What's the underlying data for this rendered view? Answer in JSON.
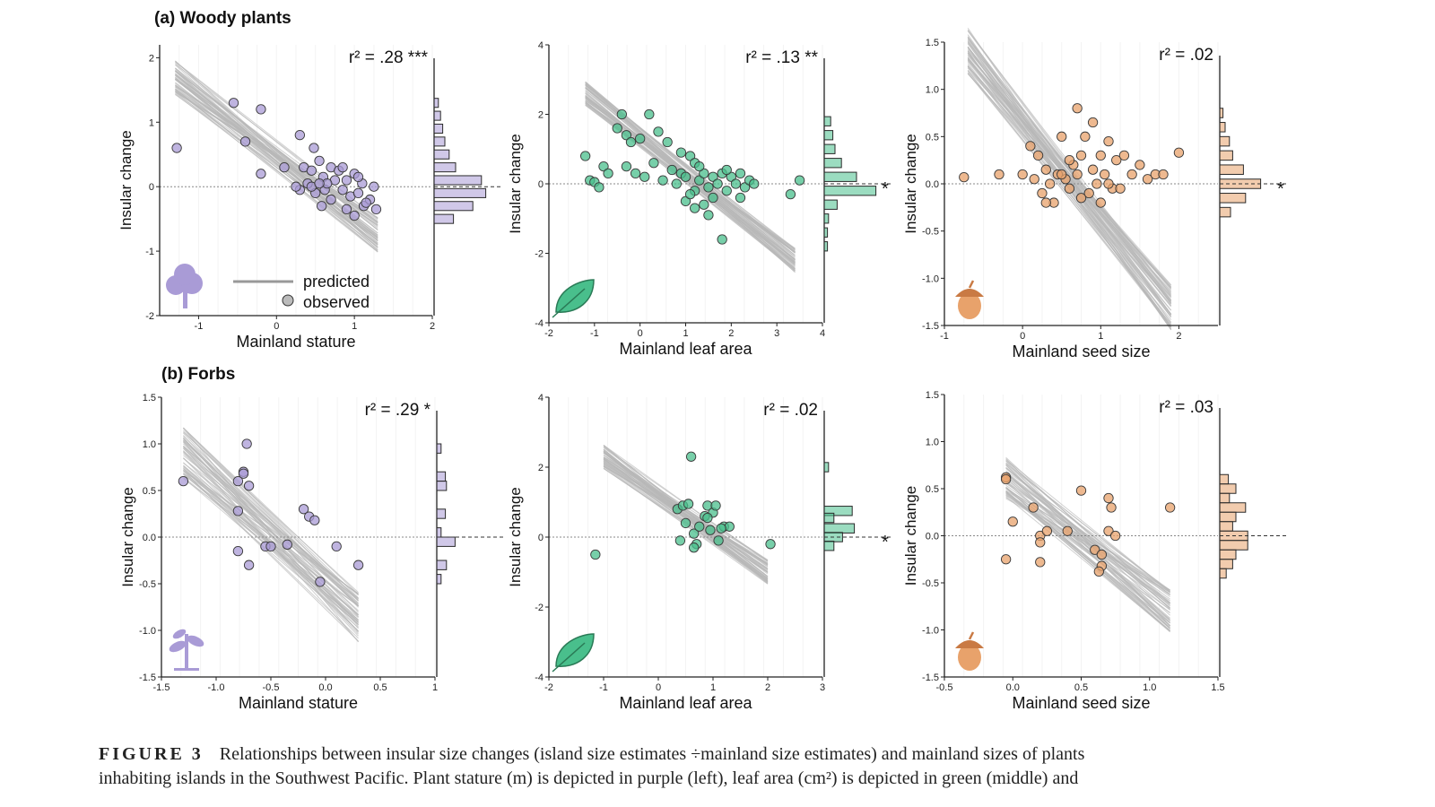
{
  "sections": [
    {
      "letter": "(a)",
      "title": "Woody plants"
    },
    {
      "letter": "(b)",
      "title": "Forbs"
    }
  ],
  "legend": {
    "line_label": "predicted",
    "point_label": "observed"
  },
  "colors": {
    "purple": "#8c7fc0",
    "purple_fill": "#a99bd6",
    "green": "#2fae7d",
    "green_fill": "#49bf8c",
    "orange": "#d9864a",
    "orange_fill": "#e8a26b",
    "prediction_lines": "#b8b8b8",
    "axis": "#222222"
  },
  "caption": {
    "label": "FIGURE 3",
    "line1": "Relationships between insular size changes (island size estimates ÷mainland size estimates) and mainland sizes of plants",
    "line2": "inhabiting islands in the Southwest Pacific. Plant stature (m) is depicted in purple (left), leaf area (cm²) is depicted in green (middle) and"
  },
  "chart_data": [
    {
      "type": "scatter",
      "panel": "a-stature",
      "icon": "tree-icon",
      "color": "purple",
      "xlabel": "Mainland stature",
      "ylabel": "Insular change",
      "xlim": [
        -1.5,
        2
      ],
      "ylim": [
        -2,
        2.2
      ],
      "xticks": [
        "-1",
        "0",
        "1",
        "2"
      ],
      "xtick_values": [
        -1,
        0,
        1,
        2
      ],
      "yticks": [
        "-2",
        "-1",
        "0",
        "1",
        "2"
      ],
      "ytick_values": [
        -2,
        -1,
        0,
        1,
        2
      ],
      "r2": "r² = .28 ***",
      "fit": {
        "x0": -1.3,
        "x1": 1.3,
        "y0": 1.7,
        "y1": -0.75,
        "spread": 0.55
      },
      "points": [
        [
          -1.28,
          0.6
        ],
        [
          -0.55,
          1.3
        ],
        [
          -0.2,
          1.2
        ],
        [
          -0.4,
          0.7
        ],
        [
          -0.2,
          0.2
        ],
        [
          0.1,
          0.3
        ],
        [
          0.3,
          0.8
        ],
        [
          0.48,
          0.6
        ],
        [
          0.35,
          0.3
        ],
        [
          0.45,
          0.25
        ],
        [
          0.4,
          0.05
        ],
        [
          0.55,
          0.4
        ],
        [
          0.6,
          0.15
        ],
        [
          0.62,
          -0.05
        ],
        [
          0.7,
          0.3
        ],
        [
          0.75,
          0.1
        ],
        [
          0.8,
          0.25
        ],
        [
          0.85,
          -0.05
        ],
        [
          0.9,
          0.1
        ],
        [
          0.95,
          -0.15
        ],
        [
          1.0,
          0.2
        ],
        [
          1.05,
          -0.1
        ],
        [
          1.1,
          0.05
        ],
        [
          1.12,
          -0.3
        ],
        [
          1.2,
          -0.2
        ],
        [
          1.25,
          0.0
        ],
        [
          1.28,
          -0.35
        ],
        [
          0.3,
          -0.05
        ],
        [
          0.5,
          -0.1
        ],
        [
          0.58,
          -0.3
        ],
        [
          0.7,
          -0.2
        ],
        [
          0.9,
          -0.35
        ],
        [
          1.0,
          -0.45
        ],
        [
          1.15,
          -0.25
        ],
        [
          0.45,
          0.0
        ],
        [
          0.65,
          0.05
        ],
        [
          0.85,
          0.3
        ],
        [
          1.05,
          0.15
        ],
        [
          0.25,
          0.0
        ],
        [
          0.55,
          0.05
        ]
      ],
      "hist": {
        "bins": [
          [
            1.3,
            0.2
          ],
          [
            1.1,
            0.3
          ],
          [
            0.9,
            0.4
          ],
          [
            0.7,
            0.5
          ],
          [
            0.5,
            0.7
          ],
          [
            0.3,
            1.0
          ],
          [
            0.1,
            2.2
          ],
          [
            -0.1,
            2.4
          ],
          [
            -0.3,
            1.8
          ],
          [
            -0.5,
            0.9
          ]
        ],
        "star": false
      }
    },
    {
      "type": "scatter",
      "panel": "a-leaf",
      "icon": "leaf-icon",
      "color": "green",
      "xlabel": "Mainland leaf area",
      "ylabel": "Insular change",
      "xlim": [
        -2,
        4
      ],
      "ylim": [
        -4,
        4
      ],
      "xticks": [
        "-2",
        "-1",
        "0",
        "1",
        "2",
        "3",
        "4"
      ],
      "xtick_values": [
        -2,
        -1,
        0,
        1,
        2,
        3,
        4
      ],
      "yticks": [
        "-4",
        "-2",
        "0",
        "2",
        "4"
      ],
      "ytick_values": [
        -4,
        -2,
        0,
        2,
        4
      ],
      "r2": "r² = .13 **",
      "fit": {
        "x0": -1.2,
        "x1": 3.4,
        "y0": 2.6,
        "y1": -2.2,
        "spread": 0.7
      },
      "points": [
        [
          -1.2,
          0.8
        ],
        [
          -1.1,
          0.1
        ],
        [
          -1.0,
          0.05
        ],
        [
          -0.9,
          -0.1
        ],
        [
          -0.8,
          0.5
        ],
        [
          -0.7,
          0.3
        ],
        [
          -0.5,
          1.6
        ],
        [
          -0.4,
          2.0
        ],
        [
          -0.3,
          1.4
        ],
        [
          -0.2,
          1.2
        ],
        [
          0.0,
          1.3
        ],
        [
          0.2,
          2.0
        ],
        [
          0.4,
          1.5
        ],
        [
          0.6,
          1.2
        ],
        [
          -0.3,
          0.5
        ],
        [
          -0.1,
          0.3
        ],
        [
          0.1,
          0.2
        ],
        [
          0.3,
          0.6
        ],
        [
          0.5,
          0.1
        ],
        [
          0.7,
          0.4
        ],
        [
          0.8,
          0.0
        ],
        [
          0.9,
          0.3
        ],
        [
          1.0,
          0.2
        ],
        [
          1.1,
          0.8
        ],
        [
          1.2,
          0.6
        ],
        [
          1.2,
          -0.2
        ],
        [
          1.3,
          0.1
        ],
        [
          1.4,
          0.3
        ],
        [
          1.5,
          -0.1
        ],
        [
          1.6,
          0.2
        ],
        [
          1.7,
          0.0
        ],
        [
          1.8,
          0.3
        ],
        [
          1.9,
          -0.2
        ],
        [
          2.0,
          0.2
        ],
        [
          2.1,
          0.0
        ],
        [
          2.2,
          0.3
        ],
        [
          2.3,
          -0.1
        ],
        [
          2.4,
          0.1
        ],
        [
          2.5,
          0.0
        ],
        [
          1.0,
          -0.5
        ],
        [
          1.2,
          -0.7
        ],
        [
          1.4,
          -0.6
        ],
        [
          1.5,
          -0.9
        ],
        [
          1.8,
          -1.6
        ],
        [
          3.3,
          -0.3
        ],
        [
          3.5,
          0.1
        ],
        [
          1.1,
          -0.3
        ],
        [
          1.6,
          -0.4
        ],
        [
          1.9,
          0.4
        ],
        [
          2.2,
          -0.4
        ],
        [
          0.9,
          0.9
        ],
        [
          1.3,
          0.5
        ]
      ],
      "hist": {
        "bins": [
          [
            1.8,
            0.3
          ],
          [
            1.4,
            0.4
          ],
          [
            1.0,
            0.5
          ],
          [
            0.6,
            0.8
          ],
          [
            0.2,
            1.5
          ],
          [
            -0.2,
            2.4
          ],
          [
            -0.6,
            0.6
          ],
          [
            -1.0,
            0.2
          ],
          [
            -1.4,
            0.15
          ],
          [
            -1.8,
            0.15
          ]
        ],
        "star": true
      }
    },
    {
      "type": "scatter",
      "panel": "a-seed",
      "icon": "acorn-icon",
      "color": "orange",
      "xlabel": "Mainland seed size",
      "ylabel": "Insular change",
      "xlim": [
        -1,
        2.5
      ],
      "ylim": [
        -1.5,
        1.5
      ],
      "xticks": [
        "-1",
        "0",
        "1",
        "2"
      ],
      "xtick_values": [
        -1,
        0,
        1,
        2
      ],
      "yticks": [
        "-1.5",
        "-1.0",
        "-0.5",
        "0.0",
        "0.5",
        "1.0",
        "1.5"
      ],
      "ytick_values": [
        -1.5,
        -1.0,
        -0.5,
        0.0,
        0.5,
        1.0,
        1.5
      ],
      "r2": "r² = .02",
      "fit": {
        "x0": -0.7,
        "x1": 1.9,
        "y0": 1.4,
        "y1": -1.3,
        "spread": 0.5
      },
      "points": [
        [
          -0.75,
          0.07
        ],
        [
          -0.3,
          0.1
        ],
        [
          0.0,
          0.1
        ],
        [
          0.1,
          0.4
        ],
        [
          0.2,
          0.3
        ],
        [
          0.15,
          0.05
        ],
        [
          0.25,
          -0.1
        ],
        [
          0.3,
          0.15
        ],
        [
          0.35,
          0.0
        ],
        [
          0.4,
          -0.2
        ],
        [
          0.45,
          0.1
        ],
        [
          0.5,
          0.5
        ],
        [
          0.55,
          0.05
        ],
        [
          0.6,
          -0.05
        ],
        [
          0.65,
          0.2
        ],
        [
          0.7,
          0.1
        ],
        [
          0.75,
          0.3
        ],
        [
          0.8,
          0.5
        ],
        [
          0.85,
          -0.1
        ],
        [
          0.9,
          0.15
        ],
        [
          0.95,
          0.0
        ],
        [
          1.0,
          0.3
        ],
        [
          1.05,
          0.1
        ],
        [
          1.1,
          0.45
        ],
        [
          1.15,
          -0.05
        ],
        [
          1.2,
          0.25
        ],
        [
          1.3,
          0.3
        ],
        [
          1.4,
          0.1
        ],
        [
          1.5,
          0.2
        ],
        [
          1.6,
          0.05
        ],
        [
          1.7,
          0.1
        ],
        [
          1.8,
          0.1
        ],
        [
          2.0,
          0.33
        ],
        [
          0.7,
          0.8
        ],
        [
          0.9,
          0.65
        ],
        [
          1.0,
          -0.2
        ],
        [
          1.1,
          0.0
        ],
        [
          0.5,
          0.1
        ],
        [
          0.6,
          0.25
        ],
        [
          1.25,
          -0.05
        ],
        [
          0.3,
          -0.2
        ],
        [
          0.75,
          -0.15
        ]
      ],
      "hist": {
        "bins": [
          [
            0.75,
            0.15
          ],
          [
            0.6,
            0.25
          ],
          [
            0.45,
            0.45
          ],
          [
            0.3,
            0.6
          ],
          [
            0.15,
            1.1
          ],
          [
            0.0,
            1.9
          ],
          [
            -0.15,
            1.2
          ],
          [
            -0.3,
            0.5
          ]
        ],
        "star": true
      }
    },
    {
      "type": "scatter",
      "panel": "b-stature",
      "icon": "sprout-icon",
      "color": "purple",
      "xlabel": "Mainland stature",
      "ylabel": "Insular change",
      "xlim": [
        -1.5,
        1
      ],
      "ylim": [
        -1.5,
        1.5
      ],
      "xticks": [
        "-1.5",
        "-1.0",
        "-0.5",
        "0.0",
        "0.5",
        "1"
      ],
      "xtick_values": [
        -1.5,
        -1.0,
        -0.5,
        0.0,
        0.5,
        1.0
      ],
      "yticks": [
        "-1.5",
        "-1.0",
        "-0.5",
        "0.0",
        "0.5",
        "1.0",
        "1.5"
      ],
      "ytick_values": [
        -1.5,
        -1.0,
        -0.5,
        0.0,
        0.5,
        1.0,
        1.5
      ],
      "r2": "r² = .29 *",
      "fit": {
        "x0": -1.3,
        "x1": 0.3,
        "y0": 0.9,
        "y1": -0.85,
        "spread": 0.55
      },
      "points": [
        [
          -1.3,
          0.6
        ],
        [
          -0.72,
          1.0
        ],
        [
          -0.75,
          0.7
        ],
        [
          -0.75,
          0.68
        ],
        [
          -0.8,
          0.6
        ],
        [
          -0.7,
          0.55
        ],
        [
          -0.8,
          0.28
        ],
        [
          -0.55,
          -0.1
        ],
        [
          -0.5,
          -0.1
        ],
        [
          -0.35,
          -0.08
        ],
        [
          -0.2,
          0.3
        ],
        [
          -0.15,
          0.22
        ],
        [
          -0.8,
          -0.15
        ],
        [
          -0.7,
          -0.3
        ],
        [
          0.1,
          -0.1
        ],
        [
          0.3,
          -0.3
        ],
        [
          -0.05,
          -0.48
        ],
        [
          -0.1,
          0.18
        ]
      ],
      "hist": {
        "bins": [
          [
            0.95,
            0.2
          ],
          [
            0.65,
            0.4
          ],
          [
            0.55,
            0.45
          ],
          [
            0.25,
            0.4
          ],
          [
            0.05,
            0.2
          ],
          [
            -0.05,
            0.85
          ],
          [
            -0.3,
            0.45
          ],
          [
            -0.45,
            0.2
          ]
        ],
        "star": false
      }
    },
    {
      "type": "scatter",
      "panel": "b-leaf",
      "icon": "leaf-icon",
      "color": "green",
      "xlabel": "Mainland leaf area",
      "ylabel": "Insular change",
      "xlim": [
        -2,
        3
      ],
      "ylim": [
        -4,
        4
      ],
      "xticks": [
        "-2",
        "-1",
        "0",
        "1",
        "2",
        "3"
      ],
      "xtick_values": [
        -2,
        -1,
        0,
        1,
        2,
        3
      ],
      "yticks": [
        "-4",
        "-2",
        "0",
        "2",
        "4"
      ],
      "ytick_values": [
        -4,
        -2,
        0,
        2,
        4
      ],
      "r2": "r² = .02",
      "fit": {
        "x0": -1.0,
        "x1": 2.0,
        "y0": 2.3,
        "y1": -1.0,
        "spread": 0.7
      },
      "points": [
        [
          -1.15,
          -0.5
        ],
        [
          0.35,
          0.8
        ],
        [
          0.45,
          0.9
        ],
        [
          0.5,
          0.4
        ],
        [
          0.55,
          0.95
        ],
        [
          0.6,
          2.3
        ],
        [
          0.65,
          0.1
        ],
        [
          0.75,
          0.3
        ],
        [
          0.7,
          -0.2
        ],
        [
          0.85,
          0.6
        ],
        [
          0.9,
          0.9
        ],
        [
          0.95,
          0.2
        ],
        [
          1.0,
          0.7
        ],
        [
          1.05,
          0.9
        ],
        [
          1.1,
          -0.1
        ],
        [
          1.2,
          0.3
        ],
        [
          1.3,
          0.3
        ],
        [
          2.05,
          -0.2
        ],
        [
          0.4,
          -0.1
        ],
        [
          0.65,
          -0.3
        ],
        [
          0.9,
          0.55
        ],
        [
          1.15,
          0.25
        ]
      ],
      "hist": {
        "bins": [
          [
            2.0,
            0.2
          ],
          [
            0.75,
            1.3
          ],
          [
            0.55,
            0.45
          ],
          [
            0.25,
            1.4
          ],
          [
            0.0,
            0.85
          ],
          [
            -0.25,
            0.45
          ]
        ],
        "star": true
      }
    },
    {
      "type": "scatter",
      "panel": "b-seed",
      "icon": "acorn-icon",
      "color": "orange",
      "xlabel": "Mainland seed size",
      "ylabel": "Insular change",
      "xlim": [
        -0.5,
        1.5
      ],
      "ylim": [
        -1.5,
        1.5
      ],
      "xticks": [
        "-0.5",
        "0.0",
        "0.5",
        "1.0",
        "1.5"
      ],
      "xtick_values": [
        -0.5,
        0.0,
        0.5,
        1.0,
        1.5
      ],
      "yticks": [
        "-1.5",
        "-1.0",
        "-0.5",
        "0.0",
        "0.5",
        "1.0",
        "1.5"
      ],
      "ytick_values": [
        -1.5,
        -1.0,
        -0.5,
        0.0,
        0.5,
        1.0,
        1.5
      ],
      "r2": "r² = .03",
      "fit": {
        "x0": -0.05,
        "x1": 1.15,
        "y0": 0.62,
        "y1": -0.8,
        "spread": 0.45
      },
      "points": [
        [
          -0.05,
          0.62
        ],
        [
          -0.05,
          0.6
        ],
        [
          0.0,
          0.15
        ],
        [
          0.15,
          0.3
        ],
        [
          0.2,
          0.0
        ],
        [
          0.2,
          -0.07
        ],
        [
          0.25,
          0.05
        ],
        [
          0.4,
          0.05
        ],
        [
          0.5,
          0.48
        ],
        [
          0.6,
          -0.15
        ],
        [
          0.65,
          -0.2
        ],
        [
          0.65,
          -0.32
        ],
        [
          0.7,
          0.05
        ],
        [
          0.7,
          0.4
        ],
        [
          0.72,
          0.3
        ],
        [
          0.75,
          0.0
        ],
        [
          1.15,
          0.3
        ],
        [
          -0.05,
          -0.25
        ],
        [
          0.2,
          -0.28
        ],
        [
          0.63,
          -0.38
        ]
      ],
      "hist": {
        "bins": [
          [
            0.6,
            0.4
          ],
          [
            0.5,
            0.75
          ],
          [
            0.4,
            0.45
          ],
          [
            0.3,
            1.2
          ],
          [
            0.2,
            0.75
          ],
          [
            0.1,
            0.6
          ],
          [
            0.0,
            1.3
          ],
          [
            -0.1,
            1.3
          ],
          [
            -0.2,
            0.75
          ],
          [
            -0.3,
            0.6
          ],
          [
            -0.4,
            0.3
          ]
        ],
        "star": false
      }
    }
  ]
}
